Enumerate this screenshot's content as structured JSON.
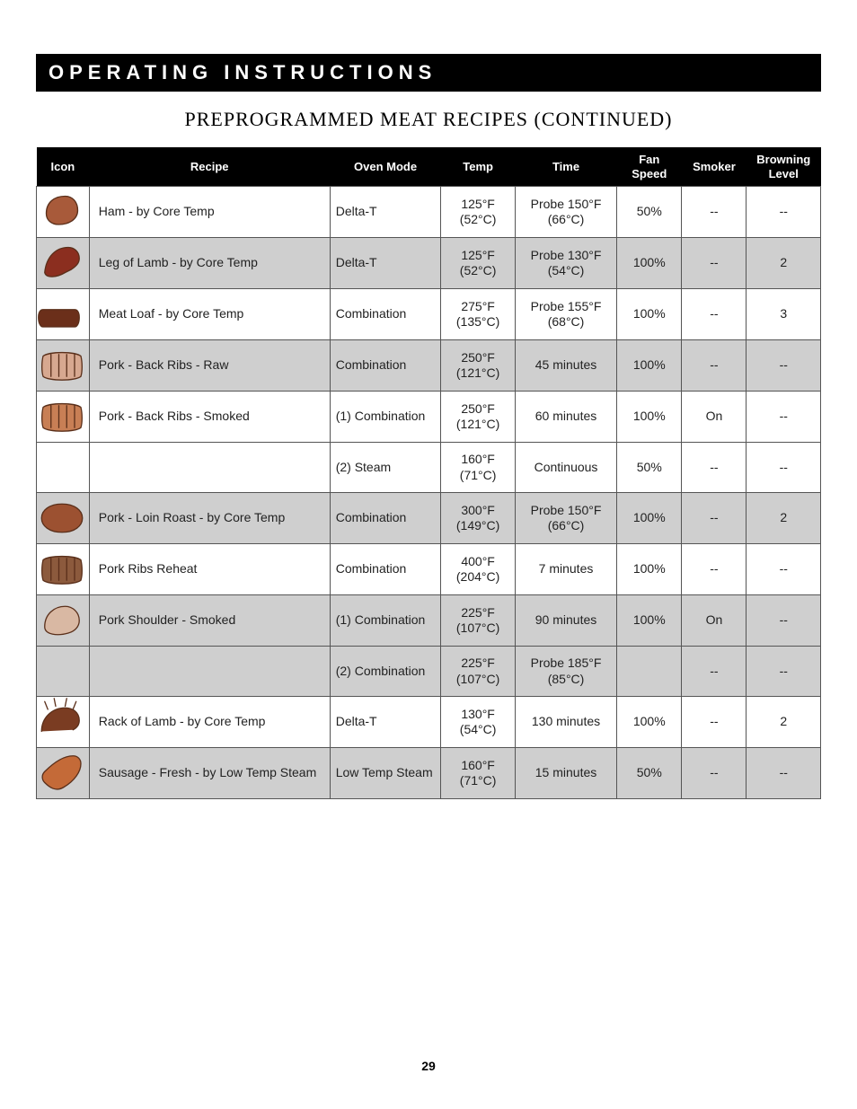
{
  "banner": "OPERATING INSTRUCTIONS",
  "subtitle": "PREPROGRAMMED MEAT RECIPES (CONTINUED)",
  "page_number": "29",
  "table": {
    "columns": [
      "Icon",
      "Recipe",
      "Oven Mode",
      "Temp",
      "Time",
      "Fan Speed",
      "Smoker",
      "Browning Level"
    ],
    "header_labels": {
      "icon": "Icon",
      "recipe": "Recipe",
      "oven": "Oven Mode",
      "temp": "Temp",
      "time": "Time",
      "fan_line1": "Fan",
      "fan_line2": "Speed",
      "smoker": "Smoker",
      "brown_line1": "Browning",
      "brown_line2": "Level"
    },
    "header_bg": "#000000",
    "header_fg": "#ffffff",
    "row_bg_light": "#ffffff",
    "row_bg_dark": "#cfcfcf",
    "border_color": "#555555",
    "body_fontsize": 14,
    "header_fontsize": 13,
    "rows": [
      {
        "shade": "light",
        "icon": "ham",
        "recipe": "Ham - by Core Temp",
        "oven": "Delta-T",
        "temp_f": "125°F",
        "temp_c": "(52°C)",
        "time": "Probe 150°F",
        "time2": "(66°C)",
        "fan": "50%",
        "smoker": "--",
        "brown": "--"
      },
      {
        "shade": "dark",
        "icon": "lamb-leg",
        "recipe": "Leg of Lamb - by Core Temp",
        "oven": "Delta-T",
        "temp_f": "125°F",
        "temp_c": "(52°C)",
        "time": "Probe 130°F",
        "time2": "(54°C)",
        "fan": "100%",
        "smoker": "--",
        "brown": "2"
      },
      {
        "shade": "light",
        "icon": "meatloaf",
        "recipe": "Meat Loaf - by Core Temp",
        "oven": "Combination",
        "temp_f": "275°F",
        "temp_c": "(135°C)",
        "time": "Probe 155°F",
        "time2": "(68°C)",
        "fan": "100%",
        "smoker": "--",
        "brown": "3"
      },
      {
        "shade": "dark",
        "icon": "ribs-raw",
        "recipe": "Pork - Back Ribs - Raw",
        "oven": "Combination",
        "temp_f": "250°F",
        "temp_c": "(121°C)",
        "time": "45 minutes",
        "time2": "",
        "fan": "100%",
        "smoker": "--",
        "brown": "--"
      },
      {
        "shade": "light",
        "icon": "ribs-smoked",
        "recipe": "Pork - Back Ribs - Smoked",
        "oven": "(1) Combination",
        "temp_f": "250°F",
        "temp_c": "(121°C)",
        "time": "60 minutes",
        "time2": "",
        "fan": "100%",
        "smoker": "On",
        "brown": "--"
      },
      {
        "shade": "light",
        "icon": "",
        "recipe": "",
        "oven": "(2) Steam",
        "temp_f": "160°F",
        "temp_c": "(71°C)",
        "time": "Continuous",
        "time2": "",
        "fan": "50%",
        "smoker": "--",
        "brown": "--"
      },
      {
        "shade": "dark",
        "icon": "pork-loin",
        "recipe": "Pork - Loin Roast - by Core Temp",
        "oven": "Combination",
        "temp_f": "300°F",
        "temp_c": "(149°C)",
        "time": "Probe 150°F",
        "time2": "(66°C)",
        "fan": "100%",
        "smoker": "--",
        "brown": "2"
      },
      {
        "shade": "light",
        "icon": "ribs-reheat",
        "recipe": "Pork Ribs Reheat",
        "oven": "Combination",
        "temp_f": "400°F",
        "temp_c": "(204°C)",
        "time": "7 minutes",
        "time2": "",
        "fan": "100%",
        "smoker": "--",
        "brown": "--"
      },
      {
        "shade": "dark",
        "icon": "pork-shoulder",
        "recipe": "Pork Shoulder - Smoked",
        "oven": "(1) Combination",
        "temp_f": "225°F",
        "temp_c": "(107°C)",
        "time": "90 minutes",
        "time2": "",
        "fan": "100%",
        "smoker": "On",
        "brown": "--"
      },
      {
        "shade": "dark",
        "icon": "",
        "recipe": "",
        "oven": "(2) Combination",
        "temp_f": "225°F",
        "temp_c": "(107°C)",
        "time": "Probe 185°F",
        "time2": "(85°C)",
        "fan": "",
        "smoker": "--",
        "brown": "--"
      },
      {
        "shade": "light",
        "icon": "rack-lamb",
        "recipe": "Rack of Lamb - by Core Temp",
        "oven": "Delta-T",
        "temp_f": "130°F",
        "temp_c": "(54°C)",
        "time": "130 minutes",
        "time2": "",
        "fan": "100%",
        "smoker": "--",
        "brown": "2"
      },
      {
        "shade": "dark",
        "icon": "sausage",
        "recipe": "Sausage - Fresh - by Low Temp Steam",
        "oven": "Low Temp Steam",
        "temp_f": "160°F",
        "temp_c": "(71°C)",
        "time": "15 minutes",
        "time2": "",
        "fan": "50%",
        "smoker": "--",
        "brown": "--"
      }
    ],
    "icon_palette": {
      "ham": "#a85a3a",
      "lamb-leg": "#8b2e1f",
      "meatloaf": "#6b2f1a",
      "ribs-raw": "#d7a890",
      "ribs-smoked": "#c87f55",
      "pork-loin": "#9c5131",
      "ribs-reheat": "#8c5a3d",
      "pork-shoulder": "#d9b8a3",
      "rack-lamb": "#7a3c22",
      "sausage": "#c46a38"
    }
  },
  "colors": {
    "page_bg": "#ffffff",
    "text": "#000000"
  }
}
